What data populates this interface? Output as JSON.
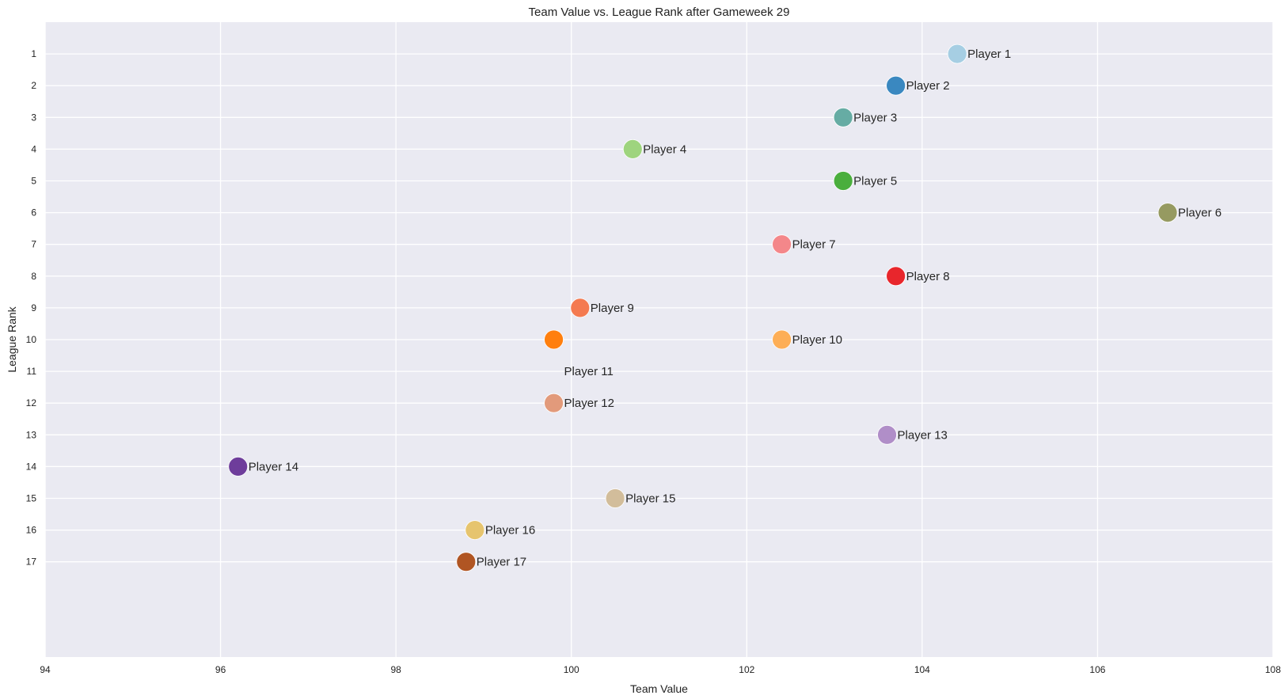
{
  "chart_data": {
    "type": "scatter",
    "title": "Team Value vs. League Rank after Gameweek 29",
    "xlabel": "Team Value",
    "ylabel": "League Rank",
    "xlim": [
      94,
      108
    ],
    "ylim": [
      0,
      20
    ],
    "y_inverted": true,
    "x_ticks": [
      "94",
      "96",
      "98",
      "100",
      "102",
      "104",
      "106",
      "108"
    ],
    "y_ticks": [
      "1",
      "2",
      "3",
      "4",
      "5",
      "6",
      "7",
      "8",
      "9",
      "10",
      "11",
      "12",
      "13",
      "14",
      "15",
      "16",
      "17"
    ],
    "grid": true,
    "background": "#eaeaf2",
    "grid_color": "#ffffff",
    "points": [
      {
        "label": "Player 1",
        "x": 104.4,
        "y": 1,
        "color": "#a6cee3"
      },
      {
        "label": "Player 2",
        "x": 103.7,
        "y": 2,
        "color": "#3a88c0"
      },
      {
        "label": "Player 3",
        "x": 103.1,
        "y": 3,
        "color": "#66aca4"
      },
      {
        "label": "Player 4",
        "x": 100.7,
        "y": 4,
        "color": "#9ed47e"
      },
      {
        "label": "Player 5",
        "x": 103.1,
        "y": 5,
        "color": "#4aae3d"
      },
      {
        "label": "Player 6",
        "x": 106.8,
        "y": 6,
        "color": "#969a61"
      },
      {
        "label": "Player 7",
        "x": 102.4,
        "y": 7,
        "color": "#f4878a"
      },
      {
        "label": "Player 8",
        "x": 103.7,
        "y": 8,
        "color": "#e8262c"
      },
      {
        "label": "Player 9",
        "x": 100.1,
        "y": 9,
        "color": "#f47a50"
      },
      {
        "label": "Player 10",
        "x": 102.4,
        "y": 10,
        "color": "#fdae56"
      },
      {
        "label": "",
        "x": 99.8,
        "y": 10,
        "color": "#ff7f0e"
      },
      {
        "label": "Player 11",
        "x": 99.8,
        "y": 11,
        "color": "#ff7f0e",
        "marker": false
      },
      {
        "label": "Player 12",
        "x": 99.8,
        "y": 12,
        "color": "#e29a7b"
      },
      {
        "label": "Player 13",
        "x": 103.6,
        "y": 13,
        "color": "#b08ec8"
      },
      {
        "label": "Player 14",
        "x": 96.2,
        "y": 14,
        "color": "#6e3d9b"
      },
      {
        "label": "Player 15",
        "x": 100.5,
        "y": 15,
        "color": "#d2bd9b"
      },
      {
        "label": "Player 16",
        "x": 98.9,
        "y": 16,
        "color": "#e6c46e"
      },
      {
        "label": "Player 17",
        "x": 98.8,
        "y": 17,
        "color": "#b05523"
      }
    ]
  }
}
